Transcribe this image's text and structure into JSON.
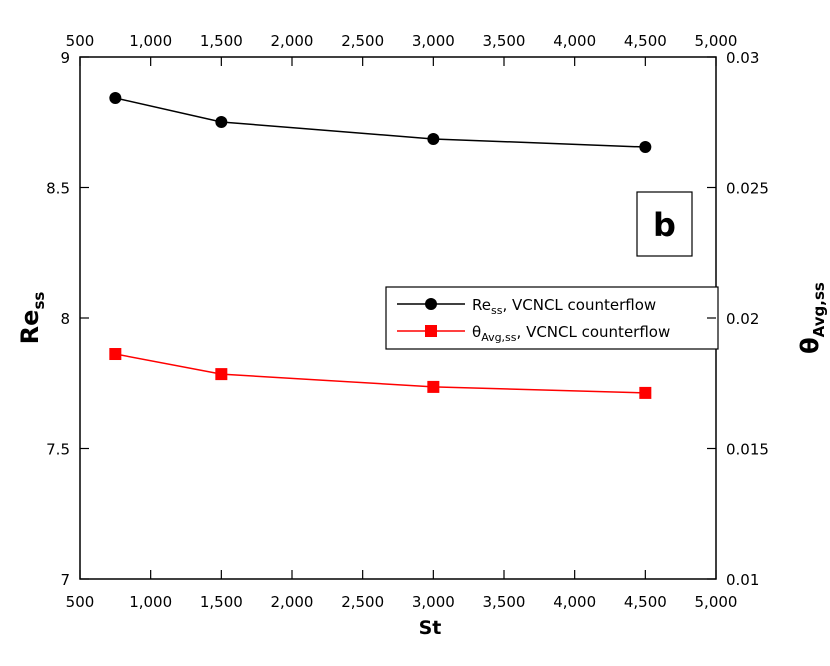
{
  "chart_data": {
    "type": "line",
    "panel_label": "b",
    "x_label": "St",
    "y_label": [
      "Re",
      "ss"
    ],
    "y2_label": [
      "θ",
      "Avg,ss"
    ],
    "xlim": [
      500,
      5000
    ],
    "xticks": [
      500,
      {
        "value": 1000,
        "label": "1,000"
      },
      {
        "value": 1500,
        "label": "1,500"
      },
      {
        "value": 2000,
        "label": "2,000"
      },
      {
        "value": 2500,
        "label": "2,500"
      },
      {
        "value": 3000,
        "label": "3,000"
      },
      {
        "value": 3500,
        "label": "3,500"
      },
      {
        "value": 4000,
        "label": "4,000"
      },
      {
        "value": 4500,
        "label": "4,500"
      },
      {
        "value": 5000,
        "label": "5,000"
      }
    ],
    "ylim": [
      7,
      9
    ],
    "yticks": [
      7,
      7.5,
      8,
      8.5,
      9
    ],
    "y2lim": [
      0.01,
      0.03
    ],
    "y2ticks": [
      0.01,
      0.015,
      0.02,
      0.025,
      0.03
    ],
    "x": [
      750,
      1500,
      3000,
      4500
    ],
    "series": [
      {
        "name": [
          "Re",
          "ss",
          ", VCNCL counterflow"
        ],
        "color": "#000000",
        "marker": "circle",
        "values": [
          8.843,
          8.751,
          8.686,
          8.655
        ]
      },
      {
        "name": [
          "θ",
          "Avg,ss",
          ", VCNCL counterflow"
        ],
        "color": "#ff0000",
        "marker": "square",
        "axis": "y2",
        "values": [
          0.01862,
          0.01785,
          0.01736,
          0.01713
        ]
      }
    ]
  }
}
